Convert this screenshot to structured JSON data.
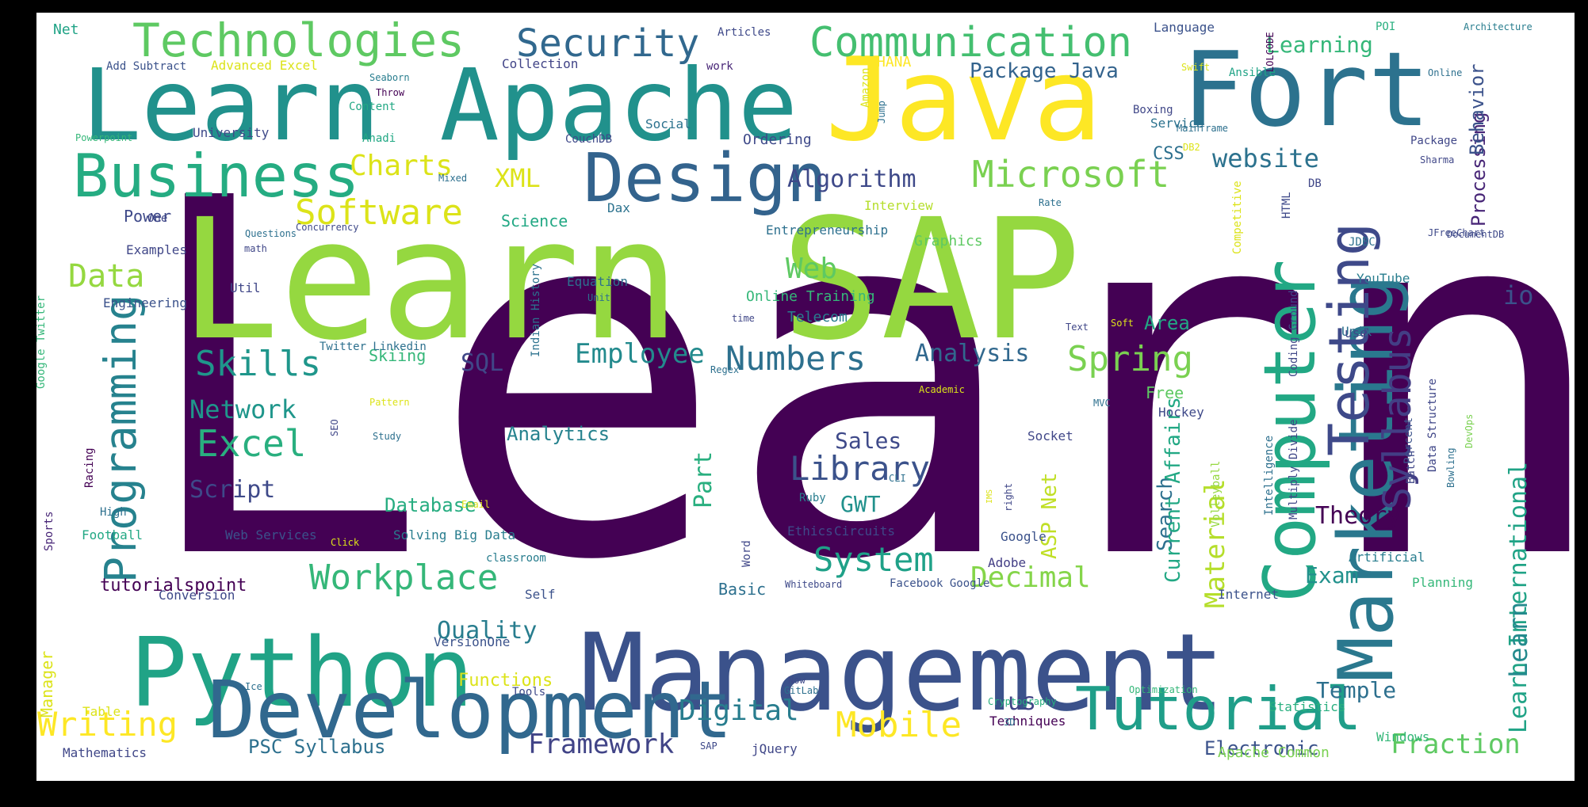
{
  "colors": {
    "background": "#000000",
    "canvas": "#ffffff",
    "palette_name": "viridis",
    "ramp": [
      "#440154",
      "#482677",
      "#404788",
      "#33638d",
      "#287d8e",
      "#1f968b",
      "#29af7f",
      "#55c667",
      "#95d840",
      "#dce319",
      "#fde725"
    ]
  },
  "words": [
    {
      "text": "Learn",
      "color": "#440154"
    },
    {
      "text": "Learn SAP",
      "color": "#95d840"
    },
    {
      "text": "Management",
      "color": "#3b528b"
    },
    {
      "text": "Learn Apache",
      "color": "#21918c"
    },
    {
      "text": "Java",
      "color": "#fde725"
    },
    {
      "text": "Fort",
      "color": "#2c728e"
    },
    {
      "text": "Python",
      "color": "#20a386"
    },
    {
      "text": "Development",
      "color": "#31688e"
    },
    {
      "text": "Marketing",
      "color": "#2a788e"
    },
    {
      "text": "Computer",
      "color": "#22a884"
    },
    {
      "text": "Tutorial",
      "color": "#1f9e89"
    },
    {
      "text": "Business",
      "color": "#25ac82"
    },
    {
      "text": "Design",
      "color": "#33638d"
    },
    {
      "text": "Programming",
      "color": "#26828e"
    },
    {
      "text": "Testing",
      "color": "#3e4989"
    },
    {
      "text": "Technologies",
      "color": "#5ec962"
    },
    {
      "text": "Communication",
      "color": "#44bf70"
    },
    {
      "text": "Security",
      "color": "#31688e"
    },
    {
      "text": "Microsoft",
      "color": "#7ad151"
    },
    {
      "text": "Software",
      "color": "#dce319"
    },
    {
      "text": "Workplace",
      "color": "#35b779"
    },
    {
      "text": "Syllabus",
      "color": "#433e85"
    },
    {
      "text": "Numbers",
      "color": "#2d708e"
    },
    {
      "text": "Skills",
      "color": "#1f968b"
    },
    {
      "text": "Excel",
      "color": "#29af7f"
    },
    {
      "text": "Spring",
      "color": "#7ad151"
    },
    {
      "text": "System",
      "color": "#1fa188"
    },
    {
      "text": "Mobile",
      "color": "#fde725"
    },
    {
      "text": "Writing",
      "color": "#fde725"
    },
    {
      "text": "Library",
      "color": "#3b528b"
    },
    {
      "text": "Decimal",
      "color": "#85d54a"
    },
    {
      "text": "Framework",
      "color": "#414487"
    },
    {
      "text": "Employee",
      "color": "#238a8d"
    },
    {
      "text": "Learning",
      "color": "#35b779"
    },
    {
      "text": "Charts",
      "color": "#dce319"
    },
    {
      "text": "Algorithm",
      "color": "#3e4989"
    },
    {
      "text": "website",
      "color": "#2c728e"
    },
    {
      "text": "Web",
      "color": "#5ec962"
    },
    {
      "text": "Data",
      "color": "#95d840"
    },
    {
      "text": "Digital",
      "color": "#287d8e"
    },
    {
      "text": "Fraction",
      "color": "#5ec962"
    },
    {
      "text": "Analysis",
      "color": "#31688e"
    },
    {
      "text": "Network",
      "color": "#1f968b"
    },
    {
      "text": "Quality",
      "color": "#287d8e"
    },
    {
      "text": "Theory",
      "color": "#440154"
    },
    {
      "text": "Material",
      "color": "#b5de2b"
    },
    {
      "text": "Learn International",
      "color": "#20a386"
    },
    {
      "text": "Processing",
      "color": "#482677"
    },
    {
      "text": "Behavior",
      "color": "#3b528b"
    },
    {
      "text": "Package Java",
      "color": "#33638d"
    },
    {
      "text": "Part",
      "color": "#29af7f"
    },
    {
      "text": "Temple",
      "color": "#2d708e"
    },
    {
      "text": "Sales",
      "color": "#3e4989"
    },
    {
      "text": "Script",
      "color": "#3e4989"
    },
    {
      "text": "XML",
      "color": "#dce319"
    },
    {
      "text": "SQL",
      "color": "#404788"
    },
    {
      "text": "io",
      "color": "#3b528b"
    },
    {
      "text": "us",
      "color": "#414487"
    },
    {
      "text": "Learn",
      "color": "#238a8d"
    },
    {
      "text": "Analytics",
      "color": "#26828e"
    },
    {
      "text": "Database",
      "color": "#27ad81"
    },
    {
      "text": "GWT",
      "color": "#21918c"
    },
    {
      "text": "Exam",
      "color": "#21918c"
    },
    {
      "text": "Search",
      "color": "#2d708e"
    },
    {
      "text": "ASP Net",
      "color": "#c0df25"
    },
    {
      "text": "Current Affairs",
      "color": "#22a884"
    },
    {
      "text": "Electronic",
      "color": "#3b528b"
    },
    {
      "text": "Area",
      "color": "#22a884"
    },
    {
      "text": "Free",
      "color": "#5ec962"
    },
    {
      "text": "Power",
      "color": "#3e4989"
    },
    {
      "text": "Skiing",
      "color": "#35b779"
    },
    {
      "text": "Science",
      "color": "#22a884"
    },
    {
      "text": "CSS",
      "color": "#2d708e"
    },
    {
      "text": "Basic",
      "color": "#2d708e"
    },
    {
      "text": "Functions",
      "color": "#dce319"
    },
    {
      "text": "PSC Syllabus",
      "color": "#2d708e"
    },
    {
      "text": "Ordering",
      "color": "#3e4989"
    },
    {
      "text": "HANA",
      "color": "#fde725"
    },
    {
      "text": "Online Training",
      "color": "#35b779"
    },
    {
      "text": "Telecom",
      "color": "#287d8e"
    },
    {
      "text": "Graphics",
      "color": "#5ec962"
    },
    {
      "text": "tutorialspoint",
      "color": "#440154"
    },
    {
      "text": "Apache Common",
      "color": "#7ad151"
    },
    {
      "text": "Net",
      "color": "#20a386"
    },
    {
      "text": "Language",
      "color": "#3b528b"
    },
    {
      "text": "Collection",
      "color": "#414487"
    },
    {
      "text": "Hockey",
      "color": "#3e4989"
    },
    {
      "text": "Mathematics",
      "color": "#404788"
    },
    {
      "text": "Manager",
      "color": "#dce319"
    },
    {
      "text": "Examples",
      "color": "#404788"
    },
    {
      "text": "Engineering",
      "color": "#3b528b"
    },
    {
      "text": "Util",
      "color": "#404788"
    },
    {
      "text": "Equation",
      "color": "#2d708e"
    },
    {
      "text": "YouTube",
      "color": "#287d8e"
    },
    {
      "text": "Unix",
      "color": "#2d708e"
    },
    {
      "text": "use",
      "color": "#404788"
    },
    {
      "text": "Statistics",
      "color": "#29af7f"
    },
    {
      "text": "Socket",
      "color": "#404788"
    },
    {
      "text": "Google",
      "color": "#3b528b"
    },
    {
      "text": "Adobe",
      "color": "#433e85"
    },
    {
      "text": "Circuits",
      "color": "#3e4989"
    },
    {
      "text": "Ethics",
      "color": "#3e4989"
    },
    {
      "text": "Solving Big Data",
      "color": "#287d8e"
    },
    {
      "text": "Web Services",
      "color": "#3b528b"
    },
    {
      "text": "Internet",
      "color": "#3b528b"
    },
    {
      "text": "Planning",
      "color": "#35b779"
    },
    {
      "text": "Artificial",
      "color": "#287d8e"
    },
    {
      "text": "Windows",
      "color": "#35b779"
    },
    {
      "text": "Techniques",
      "color": "#440154"
    },
    {
      "text": "jQuery",
      "color": "#404788"
    },
    {
      "text": "Self",
      "color": "#3b528b"
    },
    {
      "text": "Table",
      "color": "#dce319"
    },
    {
      "text": "Football",
      "color": "#22a884"
    },
    {
      "text": "High",
      "color": "#2d708e"
    },
    {
      "text": "Ruby",
      "color": "#287d8e"
    },
    {
      "text": "Service",
      "color": "#2c728e"
    },
    {
      "text": "Social",
      "color": "#2c728e"
    },
    {
      "text": "Advanced Excel",
      "color": "#dce319"
    },
    {
      "text": "Add Subtract",
      "color": "#3b528b"
    },
    {
      "text": "University",
      "color": "#3e4989"
    },
    {
      "text": "work",
      "color": "#482677"
    },
    {
      "text": "Articles",
      "color": "#3e4989"
    },
    {
      "text": "POI",
      "color": "#29af7f"
    },
    {
      "text": "Architecture",
      "color": "#287d8e"
    },
    {
      "text": "Interview",
      "color": "#b5de2b"
    },
    {
      "text": "Dax",
      "color": "#2c728e"
    },
    {
      "text": "Entrepreneurship",
      "color": "#2d708e"
    },
    {
      "text": "Facebook Google",
      "color": "#3b528b"
    },
    {
      "text": "Racing",
      "color": "#440154"
    },
    {
      "text": "Sports",
      "color": "#482677"
    },
    {
      "text": "Google Twitter",
      "color": "#35b779"
    },
    {
      "text": "Twitter Linkedin",
      "color": "#2d708e"
    },
    {
      "text": "Indian History",
      "color": "#2c728e"
    },
    {
      "text": "Coding Ground",
      "color": "#404788"
    },
    {
      "text": "Multiply Divide",
      "color": "#404788"
    },
    {
      "text": "Intelligence",
      "color": "#2d708e"
    },
    {
      "text": "Percent",
      "color": "#3b528b"
    },
    {
      "text": "Volleyball",
      "color": "#95d840"
    },
    {
      "text": "Data Structure",
      "color": "#404788"
    },
    {
      "text": "Batch",
      "color": "#404788"
    },
    {
      "text": "DevOps",
      "color": "#7ad151"
    },
    {
      "text": "Word",
      "color": "#404788"
    },
    {
      "text": "One",
      "color": "#404788"
    },
    {
      "text": "Questions",
      "color": "#2d708e"
    },
    {
      "text": "math",
      "color": "#404788"
    },
    {
      "text": "Concurrency",
      "color": "#3e4989"
    },
    {
      "text": "Content",
      "color": "#22a884"
    },
    {
      "text": "Anadi",
      "color": "#22a884"
    },
    {
      "text": "Powerpoint",
      "color": "#35b779"
    },
    {
      "text": "Seaborn",
      "color": "#287d8e"
    },
    {
      "text": "Throw",
      "color": "#440154"
    },
    {
      "text": "CouchDB",
      "color": "#3e4989"
    },
    {
      "text": "Mixed",
      "color": "#2d708e"
    },
    {
      "text": "Amazon",
      "color": "#dce319"
    },
    {
      "text": "Jump",
      "color": "#2d708e"
    },
    {
      "text": "Boxing",
      "color": "#404788"
    },
    {
      "text": "Mainframe",
      "color": "#2d708e"
    },
    {
      "text": "DB2",
      "color": "#dce319"
    },
    {
      "text": "Swift",
      "color": "#dce319"
    },
    {
      "text": "Ansible",
      "color": "#20a386"
    },
    {
      "text": "LOLCODE",
      "color": "#440154"
    },
    {
      "text": "Online",
      "color": "#2d708e"
    },
    {
      "text": "Package",
      "color": "#404788"
    },
    {
      "text": "Sharma",
      "color": "#404788"
    },
    {
      "text": "DB",
      "color": "#404788"
    },
    {
      "text": "Rate",
      "color": "#2d708e"
    },
    {
      "text": "HTML",
      "color": "#3e4989"
    },
    {
      "text": "Competitive",
      "color": "#dce319"
    },
    {
      "text": "JDBC",
      "color": "#2d708e"
    },
    {
      "text": "JFreeChart",
      "color": "#3e4989"
    },
    {
      "text": "DocumentDB",
      "color": "#3e4989"
    },
    {
      "text": "Unit",
      "color": "#2d708e"
    },
    {
      "text": "time",
      "color": "#404788"
    },
    {
      "text": "Soft",
      "color": "#dce319"
    },
    {
      "text": "Text",
      "color": "#404788"
    },
    {
      "text": "Regex",
      "color": "#2d708e"
    },
    {
      "text": "Academic",
      "color": "#dce319"
    },
    {
      "text": "MVC",
      "color": "#2d708e"
    },
    {
      "text": "CLI",
      "color": "#2d708e"
    },
    {
      "text": "Email",
      "color": "#dce319"
    },
    {
      "text": "Pattern",
      "color": "#dce319"
    },
    {
      "text": "Study",
      "color": "#2d708e"
    },
    {
      "text": "SEO",
      "color": "#404788"
    },
    {
      "text": "right",
      "color": "#404788"
    },
    {
      "text": "IMS",
      "color": "#dce319"
    },
    {
      "text": "Bowling",
      "color": "#2d708e"
    },
    {
      "text": "Click",
      "color": "#dce319"
    },
    {
      "text": "classroom",
      "color": "#287d8e"
    },
    {
      "text": "Conversion",
      "color": "#3e4989"
    },
    {
      "text": "VersionOne",
      "color": "#3b528b"
    },
    {
      "text": "Tools",
      "color": "#3e4989"
    },
    {
      "text": "Ice",
      "color": "#2d708e"
    },
    {
      "text": "Whiteboard",
      "color": "#3e4989"
    },
    {
      "text": "Now",
      "color": "#3e4989"
    },
    {
      "text": "GitLab",
      "color": "#2d708e"
    },
    {
      "text": "Optimization",
      "color": "#35b779"
    },
    {
      "text": "Cryptography",
      "color": "#29af7f"
    },
    {
      "text": "3D",
      "color": "#2d708e"
    },
    {
      "text": "SAP",
      "color": "#3e4989"
    }
  ]
}
